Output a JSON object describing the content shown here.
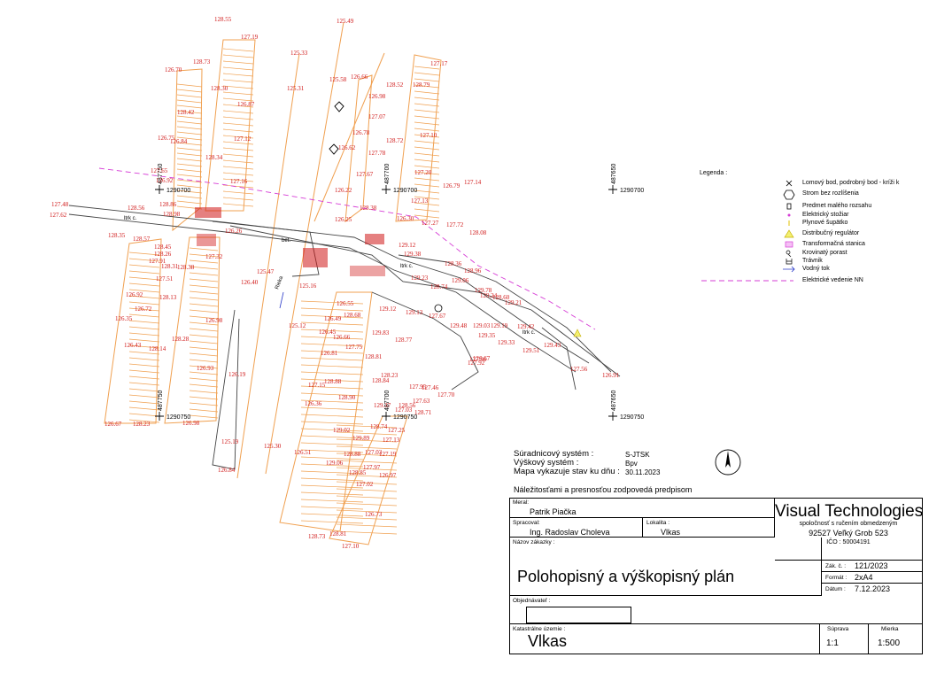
{
  "map": {
    "grid_cross_labels": [
      {
        "id": "g1",
        "text": "1290700"
      },
      {
        "id": "g2",
        "text": "1290700"
      },
      {
        "id": "g3",
        "text": "1290700"
      },
      {
        "id": "g4",
        "text": "1290750"
      },
      {
        "id": "g5",
        "text": "1290750"
      },
      {
        "id": "g6",
        "text": "1290750"
      },
      {
        "id": "v1",
        "text": "487750"
      },
      {
        "id": "v2",
        "text": "487700"
      },
      {
        "id": "v3",
        "text": "487650"
      },
      {
        "id": "v4",
        "text": "487750"
      },
      {
        "id": "v5",
        "text": "487700"
      },
      {
        "id": "v6",
        "text": "487650"
      }
    ],
    "annotations": [
      {
        "id": "a1",
        "text": "ltrk c."
      },
      {
        "id": "a2",
        "text": "bet."
      },
      {
        "id": "a3",
        "text": "ltrk c."
      },
      {
        "id": "a4",
        "text": "ltrk c."
      },
      {
        "id": "a5",
        "text": "Rieka"
      }
    ],
    "spot_heights": [
      "128.55",
      "127.19",
      "125.49",
      "125.33",
      "128.73",
      "126.70",
      "128.30",
      "125.31",
      "126.87",
      "128.42",
      "125.58",
      "126.66",
      "126.98",
      "128.52",
      "128.79",
      "127.17",
      "127.07",
      "127.10",
      "126.75",
      "126.84",
      "127.12",
      "126.78",
      "126.62",
      "128.72",
      "127.78",
      "128.34",
      "127.65",
      "126.92",
      "127.16",
      "127.67",
      "127.20",
      "126.79",
      "127.14",
      "126.22",
      "128.38",
      "127.13",
      "127.48",
      "127.62",
      "128.56",
      "128.86",
      "128.98",
      "126.25",
      "126.30",
      "127.27",
      "127.72",
      "128.08",
      "128.35",
      "128.57",
      "128.45",
      "128.26",
      "126.26",
      "127.91",
      "128.31",
      "128.38",
      "127.32",
      "129.12",
      "129.38",
      "128.36",
      "128.96",
      "127.51",
      "126.92",
      "128.13",
      "125.16",
      "125.47",
      "126.40",
      "129.23",
      "128.74",
      "129.06",
      "126.72",
      "126.35",
      "125.12",
      "126.55",
      "126.49",
      "128.68",
      "129.12",
      "129.13",
      "127.67",
      "126.98",
      "129.83",
      "129.48",
      "129.03",
      "129.35",
      "129.19",
      "129.42",
      "126.43",
      "128.28",
      "128.14",
      "126.45",
      "126.66",
      "128.77",
      "126.93",
      "126.81",
      "127.75",
      "128.81",
      "128.23",
      "127.96",
      "127.92",
      "128.88",
      "127.15",
      "128.84",
      "127.95",
      "127.46",
      "126.19",
      "126.36",
      "128.90",
      "127.70",
      "127.03",
      "127.63",
      "126.67",
      "128.23",
      "126.98",
      "129.02",
      "128.74",
      "127.25",
      "127.13",
      "129.89",
      "128.88",
      "127.03",
      "127.19",
      "125.19",
      "125.30",
      "126.51",
      "129.06",
      "127.97",
      "126.84",
      "128.85",
      "126.97",
      "127.02",
      "126.73",
      "128.73",
      "128.81",
      "127.10",
      "129.37",
      "128.56",
      "128.71",
      "127.56",
      "126.91",
      "126.67",
      "129.43",
      "129.33",
      "129.51",
      "129.78",
      "129.24",
      "128.60",
      "129.21"
    ]
  },
  "legend": {
    "title": "Legenda :",
    "items": [
      {
        "label": "Lomový bod, podrobný bod - kríži k",
        "icon": "cross-point-icon"
      },
      {
        "label": "Strom bez rozlíšenia",
        "icon": "tree-hexagon-icon"
      },
      {
        "label": "Predmet malého rozsahu",
        "icon": "small-object-icon"
      },
      {
        "label": "Elektrický stožiar",
        "icon": "electric-pole-icon"
      },
      {
        "label": "Plynové šupätko",
        "icon": "gas-valve-icon"
      },
      {
        "label": "Distribučný regulátor",
        "icon": "regulator-triangle-icon"
      },
      {
        "label": "Transformačná stanica",
        "icon": "transformer-icon"
      },
      {
        "label": "Krovinatý porast",
        "icon": "shrub-icon"
      },
      {
        "label": "Trávnik",
        "icon": "grass-icon"
      },
      {
        "label": "Vodný tok",
        "icon": "water-flow-icon"
      },
      {
        "label": "Elektrické vedenie NN",
        "icon": "power-line-icon"
      }
    ],
    "colors": {
      "power_line": "#d63cd6",
      "spot": "#d01818",
      "terrain": "#f0a050",
      "water": "#2838c8"
    }
  },
  "system": {
    "coord_label": "Súradnicový systém :",
    "coord_value": "S-JTSK",
    "height_label": "Výškový systém :",
    "height_value": "Bpv",
    "date_label": "Mapa vykazuje stav ku dňu :",
    "date_value": "30.11.2023",
    "responsibility": "Náležitosťami a presnosťou zodpovedá predpisom"
  },
  "titleblock": {
    "meral_label": "Meral:",
    "meral_value": "Patrik Piačka",
    "spracoval_label": "Spracoval:",
    "spracoval_value": "Ing. Radoslav Choleva",
    "lokalita_label": "Lokalita :",
    "lokalita_value": "Vlkas",
    "company_name": "Visual Technologies",
    "company_line1": "spoločnosť s ručením obmedzeným",
    "company_line2": "92527 Veľký Grob 523",
    "company_line3": "IČO : 50004191",
    "nazov_label": "Názov zákazky :",
    "nazov_value": "Polohopisný a výškopisný plán",
    "zak_label": "Zák. č. :",
    "zak_value": "121/2023",
    "format_label": "Formát :",
    "format_value": "2xA4",
    "datum_label": "Dátum :",
    "datum_value": "7.12.2023",
    "objednavatel_label": "Objednávateľ :",
    "katastralne_label": "Katastrálne územie :",
    "katastralne_value": "Vlkas",
    "suprava_label": "Súprava",
    "suprava_value": "1:1",
    "mierka_label": "Mierka",
    "mierka_value": "1:500"
  }
}
